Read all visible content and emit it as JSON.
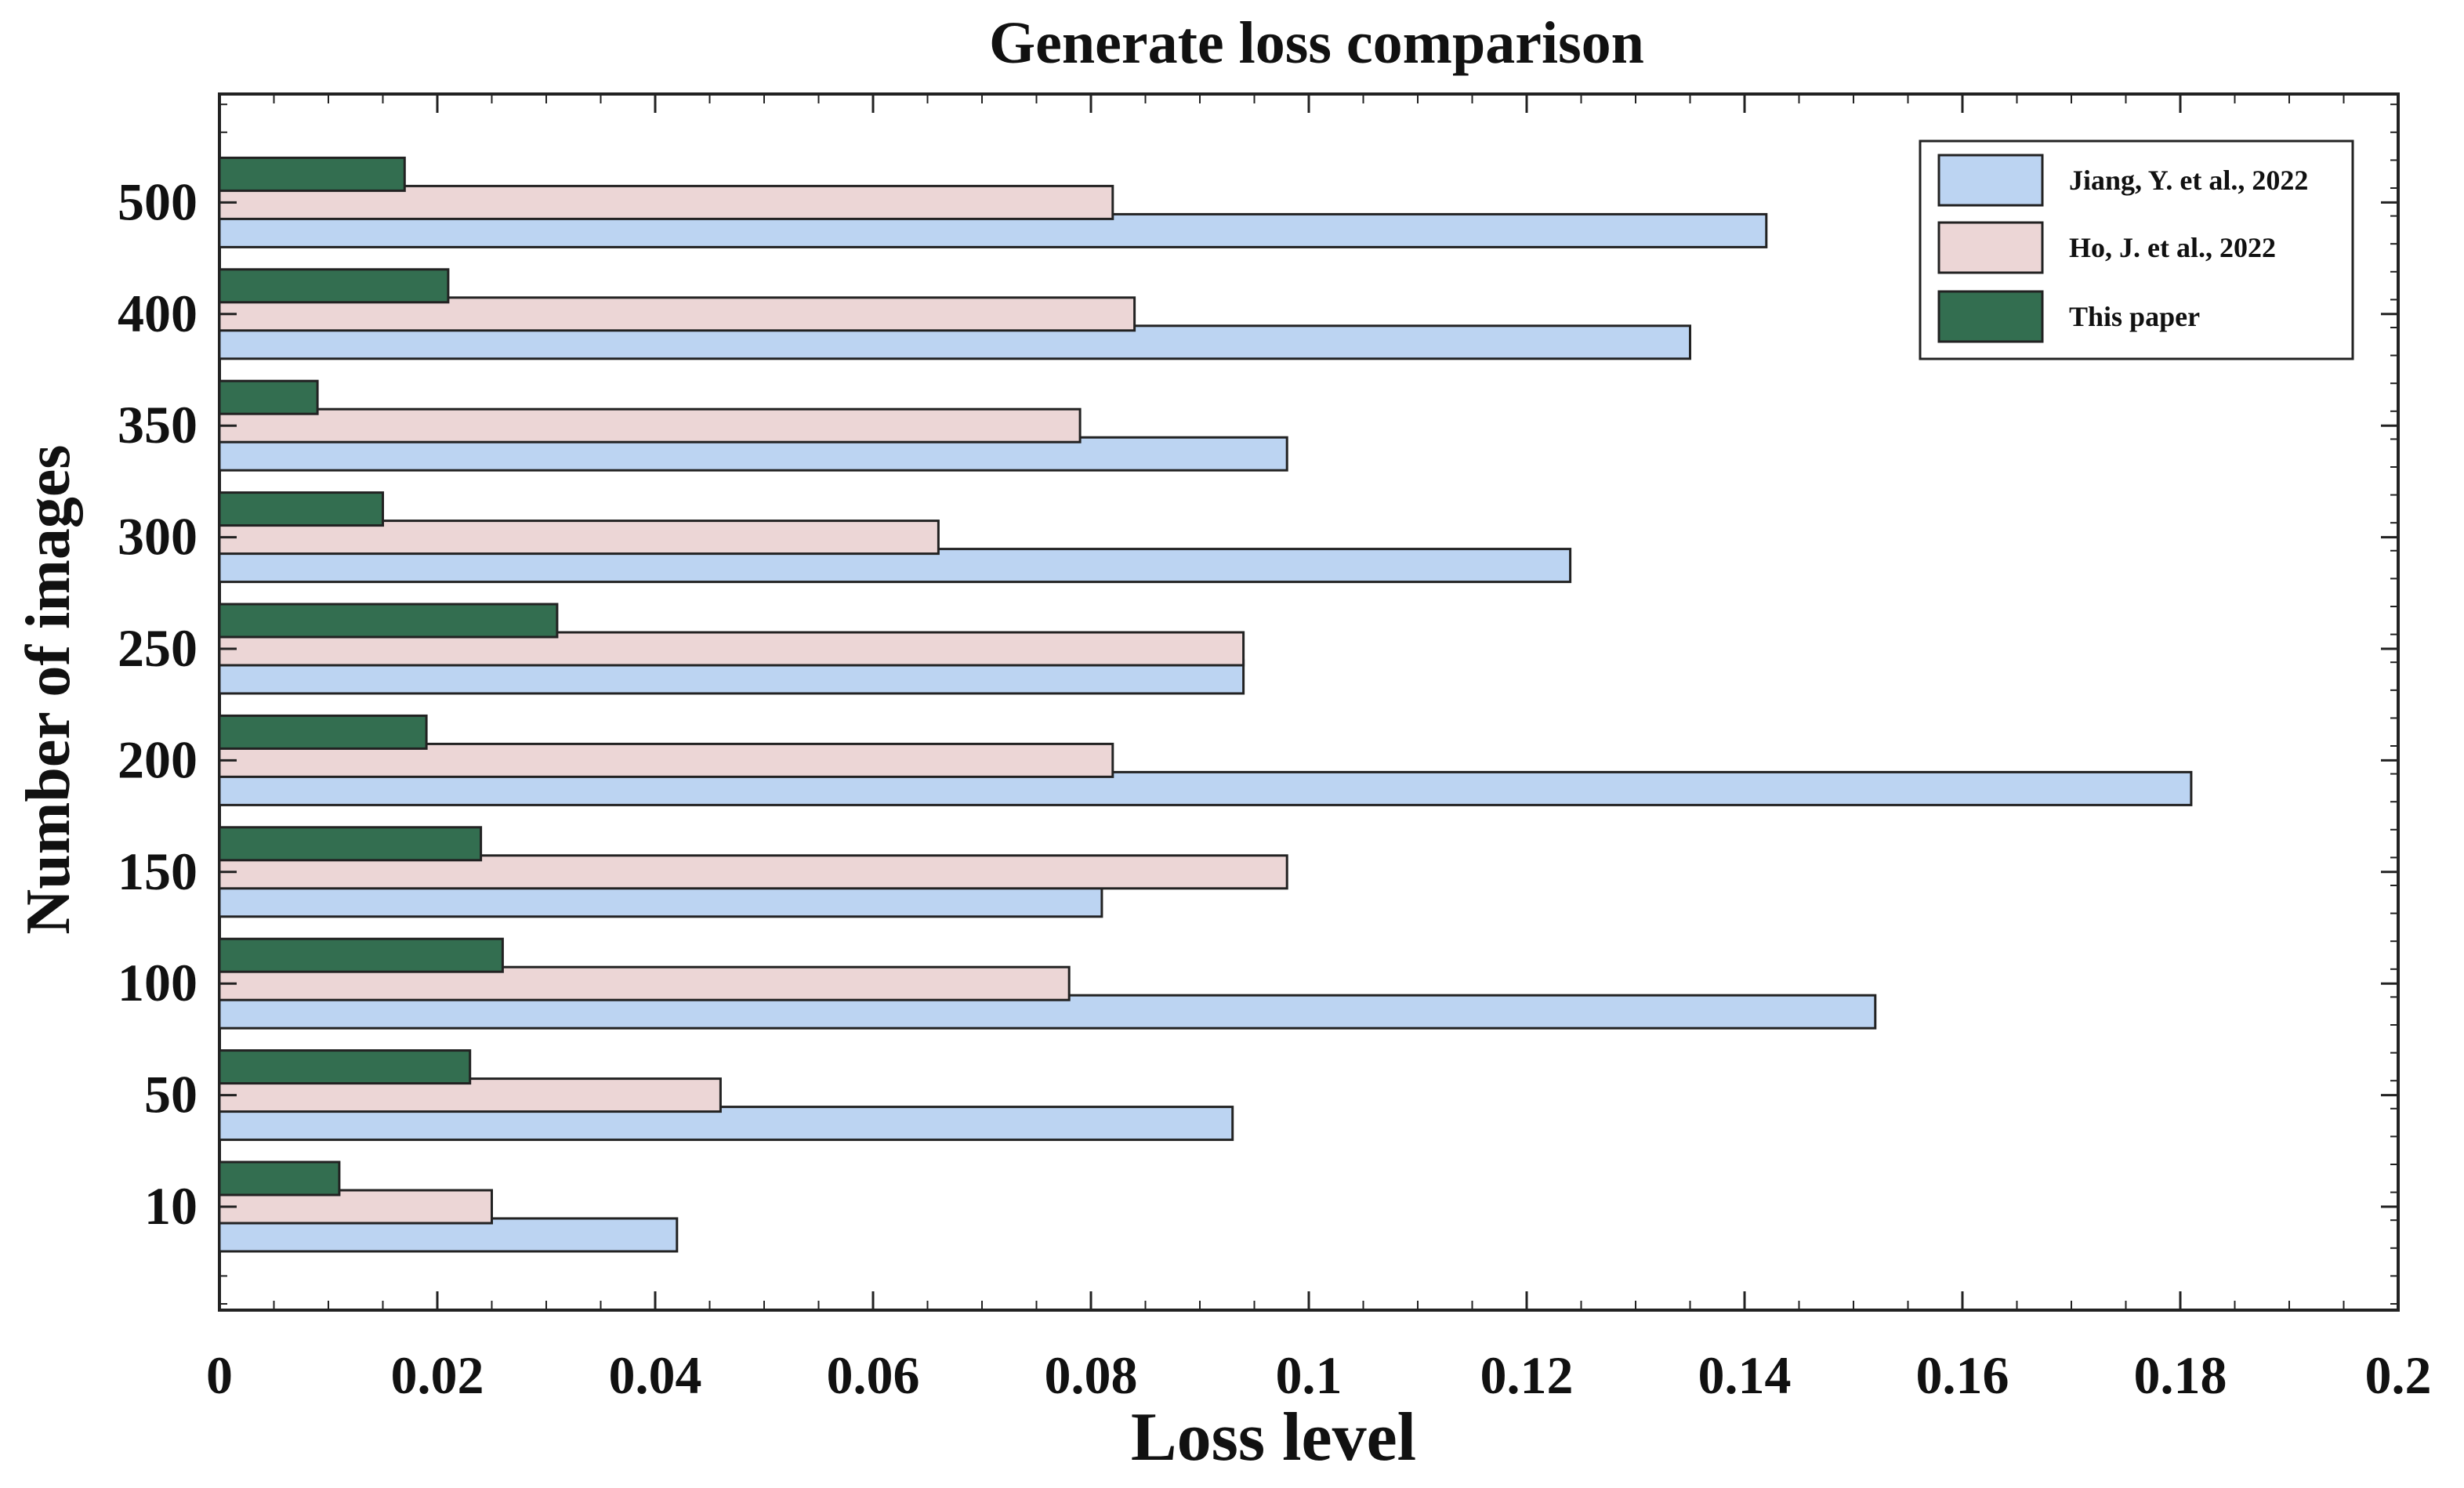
{
  "chart_data": {
    "type": "bar",
    "orientation": "horizontal",
    "title": "Generate loss comparison",
    "xlabel": "Loss level",
    "ylabel": "Number of images",
    "xlim": [
      0,
      0.2
    ],
    "x_ticks": [
      "0",
      "0.02",
      "0.04",
      "0.06",
      "0.08",
      "0.1",
      "0.12",
      "0.14",
      "0.16",
      "0.18",
      "0.2"
    ],
    "categories": [
      "10",
      "50",
      "100",
      "150",
      "200",
      "250",
      "300",
      "350",
      "400",
      "500"
    ],
    "series": [
      {
        "name": "Jiang, Y. et al., 2022",
        "color": "#bcd4f2",
        "values": [
          0.042,
          0.093,
          0.152,
          0.081,
          0.181,
          0.094,
          0.124,
          0.098,
          0.135,
          0.142
        ]
      },
      {
        "name": "Ho, J. et al., 2022",
        "color": "#ecd6d6",
        "values": [
          0.025,
          0.046,
          0.078,
          0.098,
          0.082,
          0.094,
          0.066,
          0.079,
          0.084,
          0.082
        ]
      },
      {
        "name": "This paper",
        "color": "#336e50",
        "values": [
          0.011,
          0.023,
          0.026,
          0.024,
          0.019,
          0.031,
          0.015,
          0.009,
          0.021,
          0.017
        ]
      }
    ],
    "legend_position": "top-right",
    "grid": false
  }
}
